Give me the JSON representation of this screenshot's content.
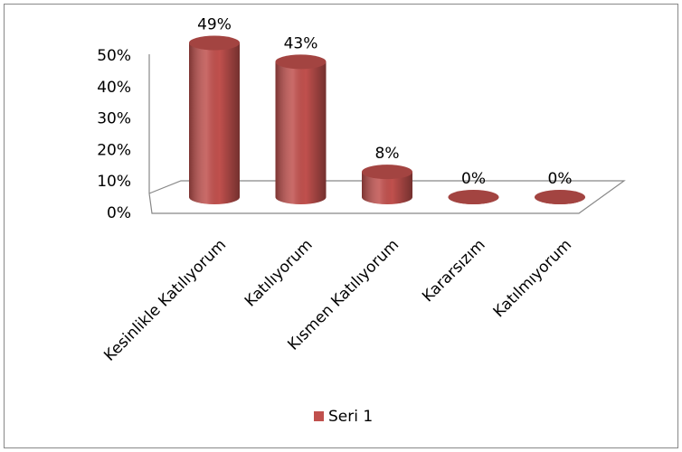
{
  "chart_data": {
    "type": "bar",
    "categories": [
      "Kesinlikle Katılıyorum",
      "Katılıyorum",
      "Kısmen Katılıyorum",
      "Kararsızım",
      "Katılmıyorum"
    ],
    "series": [
      {
        "name": "Seri 1",
        "color": "#c0504d",
        "values": [
          49,
          43,
          8,
          0,
          0
        ],
        "value_labels": [
          "49%",
          "43%",
          "8%",
          "0%",
          "0%"
        ]
      }
    ],
    "ylim": [
      0,
      50
    ],
    "yticks": [
      {
        "value": 0,
        "label": "0%"
      },
      {
        "value": 10,
        "label": "10%"
      },
      {
        "value": 20,
        "label": "20%"
      },
      {
        "value": 30,
        "label": "30%"
      },
      {
        "value": 40,
        "label": "40%"
      },
      {
        "value": 50,
        "label": "50%"
      }
    ],
    "legend": "bottom"
  }
}
